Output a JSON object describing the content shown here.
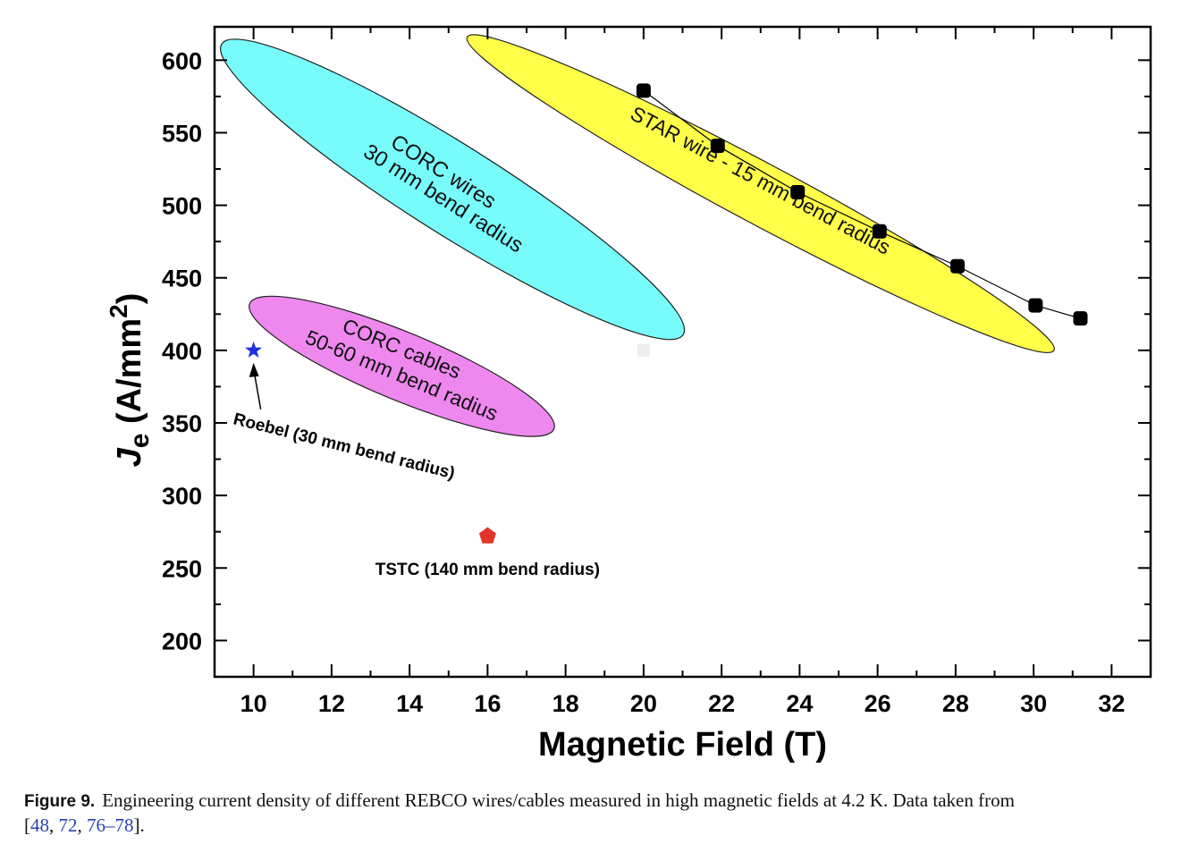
{
  "chart_data": {
    "type": "scatter",
    "xlabel": "Magnetic Field (T)",
    "ylabel_main": "J",
    "ylabel_sub": "e",
    "ylabel_unit": " (A/mm",
    "ylabel_sup": "2",
    "ylabel_close": ")",
    "xlim": [
      9,
      33
    ],
    "ylim": [
      175,
      623
    ],
    "xticks": [
      "10",
      "12",
      "14",
      "16",
      "18",
      "20",
      "22",
      "24",
      "26",
      "28",
      "30",
      "32"
    ],
    "yticks": [
      "200",
      "250",
      "300",
      "350",
      "400",
      "450",
      "500",
      "550",
      "600"
    ],
    "grid": false,
    "series": [
      {
        "marker": "square-black",
        "line": true,
        "color": "#000000",
        "x": [
          20.0,
          21.9,
          23.95,
          26.05,
          28.05,
          30.05,
          31.2
        ],
        "y": [
          579,
          541,
          509,
          482,
          458,
          431,
          422
        ]
      },
      {
        "marker": "star",
        "color": "#1f2fe0",
        "x": [
          10
        ],
        "y": [
          400
        ]
      },
      {
        "marker": "pentagon",
        "color": "#e0352a",
        "x": [
          16
        ],
        "y": [
          272
        ]
      },
      {
        "marker": "faint-square",
        "color": "#eeeeee",
        "x": [
          20
        ],
        "y": [
          400
        ]
      }
    ],
    "regions": [
      {
        "label_lines": [
          "CORC wires",
          "30 mm bend radius"
        ],
        "color": "#77fbfb",
        "center": [
          15.1,
          511
        ]
      },
      {
        "label_lines": [
          "STAR wire - 15 mm bend radius"
        ],
        "color": "#ffff4a",
        "center": [
          23.0,
          508
        ]
      },
      {
        "label_lines": [
          "CORC cables",
          "50-60 mm bend radius"
        ],
        "color": "#ee88ee",
        "center": [
          13.8,
          389
        ]
      }
    ],
    "annotations": [
      {
        "text": "Roebel (30 mm bend radius)",
        "arrow_to": [
          10,
          400
        ]
      },
      {
        "text": "TSTC (140 mm bend radius)"
      }
    ]
  },
  "caption": {
    "figure_label": "Figure 9.",
    "text": "Engineering current density of different REBCO wires/cables measured in high magnetic fields at 4.2 K. Data taken from",
    "open": "[",
    "refs": [
      "48",
      "72",
      "76–78"
    ],
    "close": "]."
  }
}
